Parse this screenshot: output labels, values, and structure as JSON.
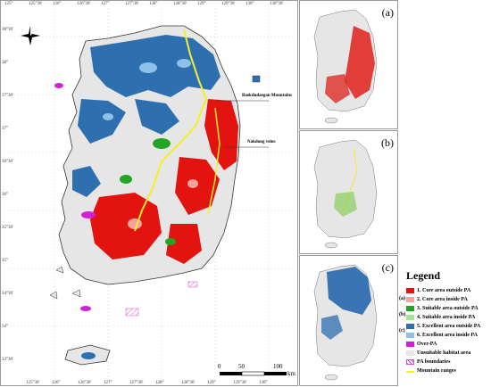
{
  "main_map": {
    "lon_ticks_top": [
      "125°",
      "125°30'",
      "126°",
      "126°30'",
      "127°",
      "127°30'",
      "128°",
      "128°30'",
      "129°",
      "129°30'",
      "130°",
      "130°30'"
    ],
    "lon_ticks_bottom": [
      "125°30'",
      "126°",
      "126°30'",
      "127°",
      "127°30'",
      "128°",
      "128°30'",
      "129°",
      "129°30'",
      "130°"
    ],
    "lat_ticks_left": [
      "38°30'",
      "38°",
      "37°30'",
      "37°",
      "36°30'",
      "36°",
      "35°30'",
      "35°",
      "34°30'",
      "34°",
      "33°30'"
    ],
    "annotations": {
      "baekdu": "Baekdudaegan Mountains",
      "nakdong": "Nakdong veins"
    },
    "scale_bar": {
      "labels": [
        "0",
        "50",
        "100"
      ],
      "unit": "km"
    },
    "north_arrow_icon": "compass-rose-icon"
  },
  "insets": [
    {
      "label": "(a)",
      "theme_color": "#e0201a"
    },
    {
      "label": "(b)",
      "theme_color": "#7ec84a"
    },
    {
      "label": "(c)",
      "theme_color": "#3a74b4"
    }
  ],
  "legend": {
    "title": "Legend",
    "group_labels": [
      "(a)",
      "(b)",
      "(c)"
    ],
    "items": [
      {
        "label": "1. Core area outside PA",
        "color": "#e3140f"
      },
      {
        "label": "2. Core area inside PA",
        "color": "#f6a3a0"
      },
      {
        "label": "3. Suitable area outside PA",
        "color": "#23a424"
      },
      {
        "label": "4. Suitable area inside PA",
        "color": "#a6e39a"
      },
      {
        "label": "5. Excellent area outside PA",
        "color": "#2e6faf"
      },
      {
        "label": "6. Excellent area inside PA",
        "color": "#8ec1ea"
      },
      {
        "label": "Over-PA",
        "color": "#d31fd8"
      },
      {
        "label": "Unsuitable habitat area",
        "color": "#e6e6e6"
      },
      {
        "label": "PA boundaries",
        "color": "#d84fd0"
      },
      {
        "label": "Mountain ranges",
        "color": "#f3ef2a"
      }
    ]
  }
}
